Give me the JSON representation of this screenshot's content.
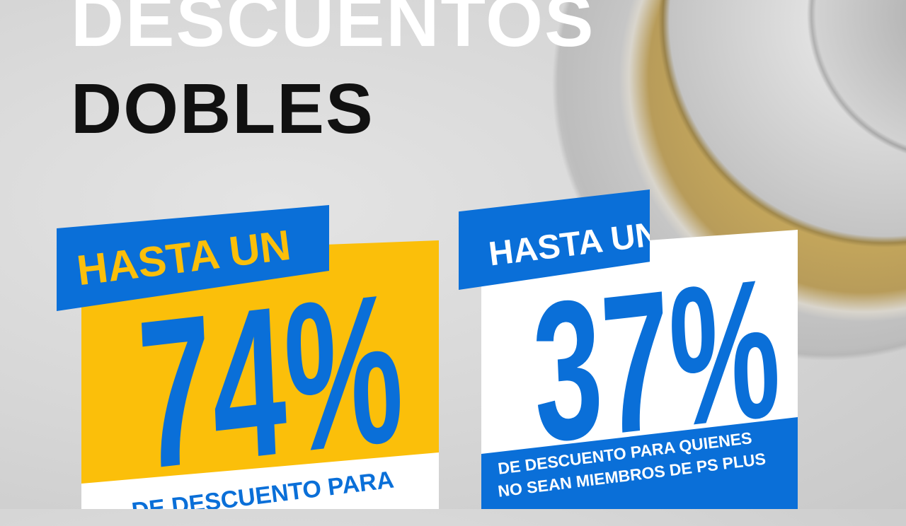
{
  "headline": {
    "line1": "DESCUENTOS",
    "line2": "DOBLES"
  },
  "left_offer": {
    "tag": "HASTA UN",
    "value": "74%",
    "caption": "DE DESCUENTO PARA"
  },
  "right_offer": {
    "tag": "HASTA UN",
    "value": "37%",
    "caption_line1": "DE DESCUENTO PARA QUIENES",
    "caption_line2": "NO SEAN MIEMBROS DE PS PLUS"
  },
  "colors": {
    "blue": "#0a6fd8",
    "yellow": "#fbbf0a",
    "white": "#ffffff",
    "black": "#111111"
  }
}
